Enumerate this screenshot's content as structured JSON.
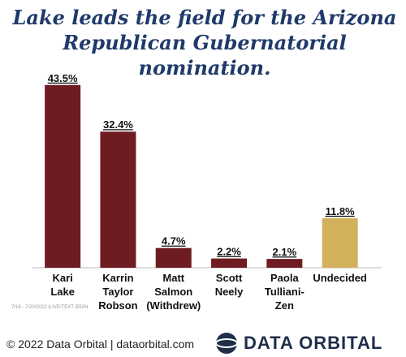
{
  "chart_data": {
    "type": "bar",
    "title": "Lake leads the field for the Arizona Republican Gubernatorial nomination.",
    "categories": [
      "Kari\nLake",
      "Karrin\nTaylor\nRobson",
      "Matt\nSalmon\n(Withdrew)",
      "Scott\nNeely",
      "Paola\nTulliani-\nZen",
      "Undecided"
    ],
    "values": [
      43.5,
      32.4,
      4.7,
      2.2,
      2.1,
      11.8
    ],
    "value_labels": [
      "43.5%",
      "32.4%",
      "4.7%",
      "2.2%",
      "2.1%",
      "11.8%"
    ],
    "colors": [
      "#6e1b22",
      "#6e1b22",
      "#6e1b22",
      "#6e1b22",
      "#6e1b22",
      "#d3b05c"
    ],
    "ylim": [
      0,
      45
    ]
  },
  "footnote": "7/18 - 7/20/2022 |LIVE/TEXT |550N",
  "credit": "© 2022 Data Orbital | dataorbital.com",
  "logo_text": "DATA ORBITAL"
}
